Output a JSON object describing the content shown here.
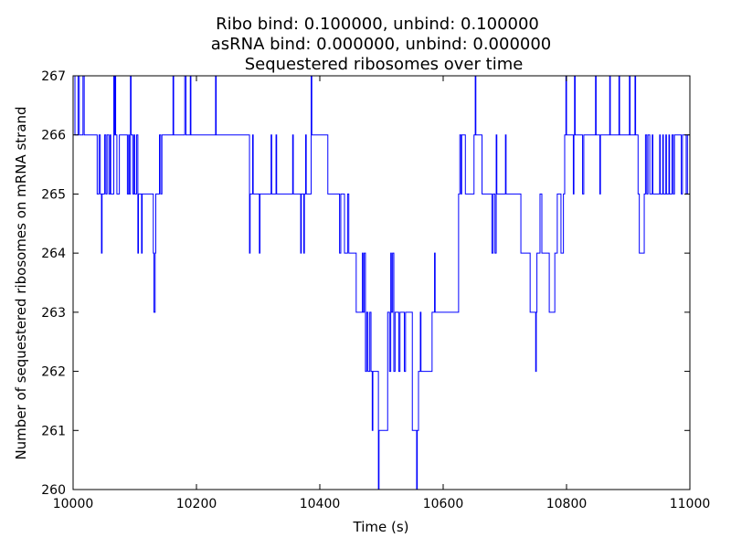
{
  "chart_data": {
    "type": "line",
    "title_lines": [
      "Ribo bind: 0.100000, unbind: 0.100000",
      "asRNA bind: 0.000000, unbind: 0.000000",
      "Sequestered ribosomes over time"
    ],
    "xlabel": "Time (s)",
    "ylabel": "Number of sequestered ribosomes on mRNA strand",
    "xlim": [
      10000,
      11000
    ],
    "ylim": [
      260,
      267
    ],
    "x_ticks": [
      10000,
      10200,
      10400,
      10600,
      10800,
      11000
    ],
    "y_ticks": [
      260,
      261,
      262,
      263,
      264,
      265,
      266,
      267
    ],
    "grid": false,
    "legend": "none",
    "series": [
      {
        "name": "sequestered ribosomes",
        "color": "#0000ff",
        "step": "post",
        "points": [
          [
            10000,
            267
          ],
          [
            10003,
            266
          ],
          [
            10008,
            267
          ],
          [
            10010,
            266
          ],
          [
            10016,
            267
          ],
          [
            10018,
            266
          ],
          [
            10038,
            266
          ],
          [
            10039,
            265
          ],
          [
            10042,
            266
          ],
          [
            10044,
            265
          ],
          [
            10046,
            264
          ],
          [
            10047,
            265
          ],
          [
            10050,
            265
          ],
          [
            10051,
            266
          ],
          [
            10053,
            265
          ],
          [
            10055,
            266
          ],
          [
            10058,
            265
          ],
          [
            10060,
            266
          ],
          [
            10061,
            265
          ],
          [
            10064,
            265
          ],
          [
            10066,
            267
          ],
          [
            10067,
            266
          ],
          [
            10068,
            267
          ],
          [
            10069,
            266
          ],
          [
            10071,
            265
          ],
          [
            10075,
            266
          ],
          [
            10085,
            266
          ],
          [
            10088,
            265
          ],
          [
            10090,
            266
          ],
          [
            10091,
            265
          ],
          [
            10093,
            267
          ],
          [
            10094,
            266
          ],
          [
            10097,
            265
          ],
          [
            10099,
            266
          ],
          [
            10100,
            265
          ],
          [
            10103,
            266
          ],
          [
            10105,
            264
          ],
          [
            10106,
            265
          ],
          [
            10110,
            265
          ],
          [
            10111,
            264
          ],
          [
            10112,
            265
          ],
          [
            10128,
            265
          ],
          [
            10130,
            264
          ],
          [
            10131,
            263
          ],
          [
            10133,
            264
          ],
          [
            10134,
            265
          ],
          [
            10138,
            265
          ],
          [
            10140,
            266
          ],
          [
            10142,
            265
          ],
          [
            10144,
            266
          ],
          [
            10160,
            266
          ],
          [
            10162,
            267
          ],
          [
            10163,
            266
          ],
          [
            10180,
            266
          ],
          [
            10181,
            267
          ],
          [
            10183,
            266
          ],
          [
            10189,
            266
          ],
          [
            10190,
            267
          ],
          [
            10191,
            266
          ],
          [
            10230,
            266
          ],
          [
            10231,
            267
          ],
          [
            10232,
            266
          ],
          [
            10284,
            266
          ],
          [
            10286,
            264
          ],
          [
            10287,
            265
          ],
          [
            10290,
            265
          ],
          [
            10291,
            266
          ],
          [
            10292,
            265
          ],
          [
            10300,
            265
          ],
          [
            10302,
            264
          ],
          [
            10303,
            265
          ],
          [
            10320,
            265
          ],
          [
            10321,
            266
          ],
          [
            10322,
            265
          ],
          [
            10328,
            265
          ],
          [
            10329,
            266
          ],
          [
            10330,
            265
          ],
          [
            10355,
            265
          ],
          [
            10356,
            266
          ],
          [
            10357,
            265
          ],
          [
            10368,
            265
          ],
          [
            10369,
            264
          ],
          [
            10370,
            265
          ],
          [
            10374,
            264
          ],
          [
            10375,
            265
          ],
          [
            10377,
            266
          ],
          [
            10378,
            265
          ],
          [
            10385,
            265
          ],
          [
            10386,
            267
          ],
          [
            10387,
            266
          ],
          [
            10412,
            266
          ],
          [
            10413,
            265
          ],
          [
            10430,
            265
          ],
          [
            10432,
            264
          ],
          [
            10434,
            265
          ],
          [
            10438,
            265
          ],
          [
            10440,
            264
          ],
          [
            10444,
            264
          ],
          [
            10445,
            265
          ],
          [
            10447,
            264
          ],
          [
            10457,
            264
          ],
          [
            10459,
            263
          ],
          [
            10468,
            263
          ],
          [
            10469,
            264
          ],
          [
            10470,
            263
          ],
          [
            10472,
            264
          ],
          [
            10474,
            262
          ],
          [
            10476,
            263
          ],
          [
            10478,
            262
          ],
          [
            10481,
            263
          ],
          [
            10483,
            262
          ],
          [
            10485,
            261
          ],
          [
            10486,
            262
          ],
          [
            10493,
            262
          ],
          [
            10495,
            260
          ],
          [
            10496,
            261
          ],
          [
            10508,
            261
          ],
          [
            10510,
            263
          ],
          [
            10513,
            262
          ],
          [
            10515,
            264
          ],
          [
            10516,
            263
          ],
          [
            10518,
            264
          ],
          [
            10520,
            262
          ],
          [
            10522,
            263
          ],
          [
            10526,
            263
          ],
          [
            10528,
            262
          ],
          [
            10530,
            263
          ],
          [
            10535,
            263
          ],
          [
            10537,
            262
          ],
          [
            10539,
            263
          ],
          [
            10548,
            263
          ],
          [
            10550,
            261
          ],
          [
            10556,
            261
          ],
          [
            10557,
            260
          ],
          [
            10558,
            261
          ],
          [
            10560,
            262
          ],
          [
            10563,
            263
          ],
          [
            10564,
            262
          ],
          [
            10580,
            262
          ],
          [
            10582,
            263
          ],
          [
            10585,
            263
          ],
          [
            10586,
            264
          ],
          [
            10587,
            263
          ],
          [
            10623,
            263
          ],
          [
            10625,
            265
          ],
          [
            10627,
            266
          ],
          [
            10629,
            265
          ],
          [
            10630,
            266
          ],
          [
            10634,
            266
          ],
          [
            10636,
            265
          ],
          [
            10648,
            265
          ],
          [
            10650,
            266
          ],
          [
            10652,
            267
          ],
          [
            10653,
            266
          ],
          [
            10661,
            266
          ],
          [
            10663,
            265
          ],
          [
            10678,
            265
          ],
          [
            10679,
            264
          ],
          [
            10681,
            265
          ],
          [
            10684,
            264
          ],
          [
            10686,
            266
          ],
          [
            10687,
            265
          ],
          [
            10700,
            265
          ],
          [
            10701,
            266
          ],
          [
            10702,
            265
          ],
          [
            10723,
            265
          ],
          [
            10726,
            264
          ],
          [
            10739,
            264
          ],
          [
            10741,
            263
          ],
          [
            10749,
            263
          ],
          [
            10750,
            262
          ],
          [
            10751,
            263
          ],
          [
            10752,
            264
          ],
          [
            10756,
            264
          ],
          [
            10757,
            265
          ],
          [
            10760,
            264
          ],
          [
            10770,
            264
          ],
          [
            10772,
            263
          ],
          [
            10779,
            263
          ],
          [
            10781,
            264
          ],
          [
            10784,
            264
          ],
          [
            10785,
            265
          ],
          [
            10790,
            265
          ],
          [
            10791,
            264
          ],
          [
            10795,
            265
          ],
          [
            10797,
            266
          ],
          [
            10799,
            267
          ],
          [
            10800,
            266
          ],
          [
            10810,
            266
          ],
          [
            10811,
            265
          ],
          [
            10812,
            266
          ],
          [
            10813,
            267
          ],
          [
            10814,
            266
          ],
          [
            10825,
            266
          ],
          [
            10826,
            265
          ],
          [
            10828,
            266
          ],
          [
            10846,
            266
          ],
          [
            10847,
            267
          ],
          [
            10848,
            266
          ],
          [
            10853,
            266
          ],
          [
            10854,
            265
          ],
          [
            10855,
            266
          ],
          [
            10869,
            266
          ],
          [
            10870,
            267
          ],
          [
            10871,
            266
          ],
          [
            10884,
            266
          ],
          [
            10885,
            267
          ],
          [
            10886,
            266
          ],
          [
            10901,
            266
          ],
          [
            10902,
            267
          ],
          [
            10903,
            266
          ],
          [
            10910,
            266
          ],
          [
            10911,
            267
          ],
          [
            10912,
            266
          ],
          [
            10915,
            266
          ],
          [
            10916,
            265
          ],
          [
            10918,
            264
          ],
          [
            10925,
            264
          ],
          [
            10926,
            265
          ],
          [
            10928,
            266
          ],
          [
            10930,
            265
          ],
          [
            10932,
            266
          ],
          [
            10935,
            265
          ],
          [
            10938,
            265
          ],
          [
            10939,
            266
          ],
          [
            10940,
            265
          ],
          [
            10950,
            265
          ],
          [
            10951,
            266
          ],
          [
            10952,
            265
          ],
          [
            10955,
            265
          ],
          [
            10956,
            266
          ],
          [
            10957,
            265
          ],
          [
            10960,
            265
          ],
          [
            10961,
            266
          ],
          [
            10962,
            265
          ],
          [
            10965,
            265
          ],
          [
            10966,
            266
          ],
          [
            10967,
            265
          ],
          [
            10970,
            265
          ],
          [
            10971,
            266
          ],
          [
            10973,
            265
          ],
          [
            10975,
            266
          ],
          [
            10985,
            266
          ],
          [
            10986,
            265
          ],
          [
            10988,
            266
          ],
          [
            10993,
            266
          ],
          [
            10994,
            265
          ],
          [
            10996,
            266
          ],
          [
            11000,
            266
          ]
        ]
      }
    ]
  }
}
